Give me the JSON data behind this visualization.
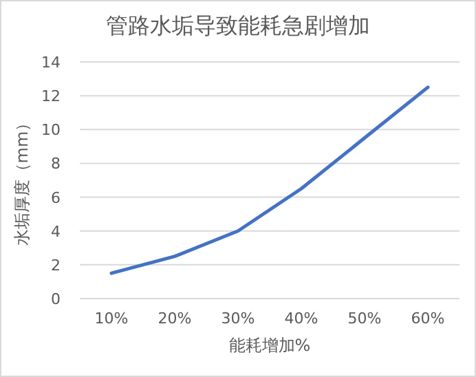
{
  "chart_data": {
    "type": "line",
    "title": "管路水垢导致能耗急剧增加",
    "xlabel": "能耗增加%",
    "ylabel": "水垢厚度（mm）",
    "categories": [
      "10%",
      "20%",
      "30%",
      "40%",
      "50%",
      "60%"
    ],
    "values": [
      1.5,
      2.5,
      4,
      6.5,
      9.5,
      12.5
    ],
    "color": "#4472c4",
    "ylim": [
      0,
      14
    ],
    "yticks": [
      0,
      2,
      4,
      6,
      8,
      10,
      12,
      14
    ],
    "grid": "y"
  }
}
